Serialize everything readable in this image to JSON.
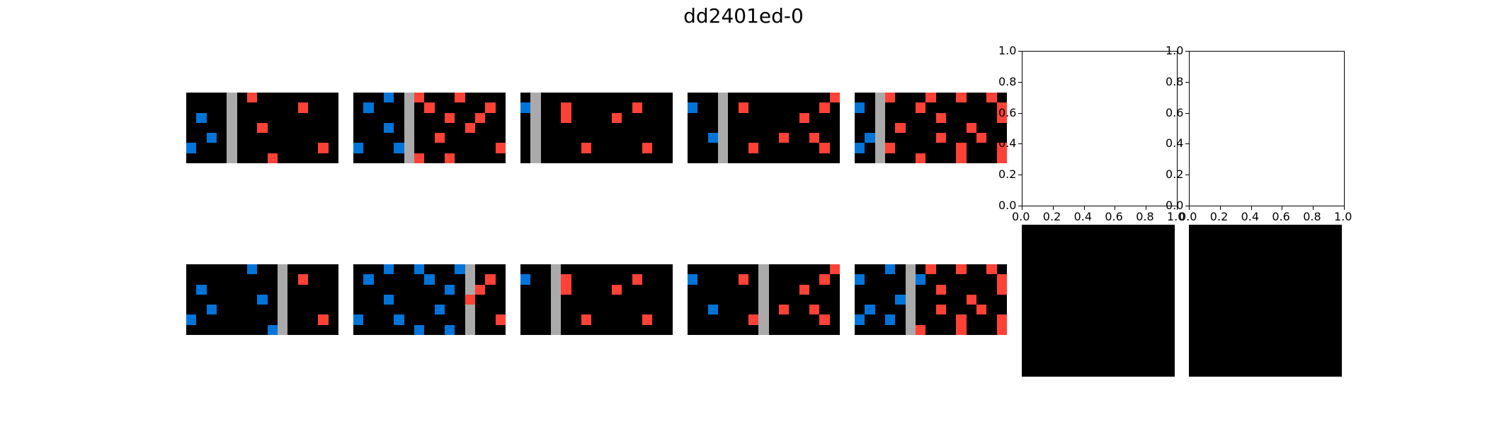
{
  "figure": {
    "title": "dd2401ed-0"
  },
  "colors": {
    "black": "#000000",
    "blue": "#0074D9",
    "red": "#FF4136",
    "gray": "#AAAAAA"
  },
  "grids": [
    {
      "name": "train-1-input",
      "w": 15,
      "h": 7,
      "cells": [
        [
          6,
          0,
          "red"
        ],
        [
          11,
          1,
          "red"
        ],
        [
          1,
          2,
          "blue"
        ],
        [
          7,
          3,
          "red"
        ],
        [
          2,
          4,
          "blue"
        ],
        [
          0,
          5,
          "blue"
        ],
        [
          13,
          5,
          "red"
        ],
        [
          8,
          6,
          "red"
        ]
      ],
      "gray_cols": [
        4
      ]
    },
    {
      "name": "train-2-input",
      "w": 15,
      "h": 7,
      "cells": [
        [
          3,
          0,
          "blue"
        ],
        [
          6,
          0,
          "red"
        ],
        [
          10,
          0,
          "red"
        ],
        [
          1,
          1,
          "blue"
        ],
        [
          7,
          1,
          "red"
        ],
        [
          13,
          1,
          "red"
        ],
        [
          9,
          2,
          "red"
        ],
        [
          12,
          2,
          "red"
        ],
        [
          3,
          3,
          "blue"
        ],
        [
          11,
          3,
          "red"
        ],
        [
          8,
          4,
          "red"
        ],
        [
          0,
          5,
          "blue"
        ],
        [
          4,
          5,
          "blue"
        ],
        [
          14,
          5,
          "red"
        ],
        [
          6,
          6,
          "red"
        ],
        [
          9,
          6,
          "red"
        ]
      ],
      "gray_cols": [
        5
      ]
    },
    {
      "name": "train-3-input",
      "w": 15,
      "h": 7,
      "cells": [
        [
          0,
          1,
          "blue"
        ],
        [
          4,
          1,
          "red"
        ],
        [
          11,
          1,
          "red"
        ],
        [
          4,
          2,
          "red"
        ],
        [
          9,
          2,
          "red"
        ],
        [
          6,
          5,
          "red"
        ],
        [
          12,
          5,
          "red"
        ]
      ],
      "gray_cols": [
        1
      ]
    },
    {
      "name": "train-4-input",
      "w": 15,
      "h": 7,
      "cells": [
        [
          14,
          0,
          "red"
        ],
        [
          0,
          1,
          "blue"
        ],
        [
          5,
          1,
          "red"
        ],
        [
          13,
          1,
          "red"
        ],
        [
          11,
          2,
          "red"
        ],
        [
          2,
          4,
          "blue"
        ],
        [
          9,
          4,
          "red"
        ],
        [
          12,
          4,
          "red"
        ],
        [
          6,
          5,
          "red"
        ],
        [
          13,
          5,
          "red"
        ]
      ],
      "gray_cols": [
        3
      ]
    },
    {
      "name": "train-5-input",
      "w": 15,
      "h": 7,
      "cells": [
        [
          3,
          0,
          "red"
        ],
        [
          7,
          0,
          "red"
        ],
        [
          10,
          0,
          "red"
        ],
        [
          13,
          0,
          "red"
        ],
        [
          0,
          1,
          "blue"
        ],
        [
          6,
          1,
          "red"
        ],
        [
          14,
          1,
          "red"
        ],
        [
          8,
          2,
          "red"
        ],
        [
          14,
          2,
          "red"
        ],
        [
          4,
          3,
          "red"
        ],
        [
          11,
          3,
          "red"
        ],
        [
          1,
          4,
          "blue"
        ],
        [
          8,
          4,
          "red"
        ],
        [
          12,
          4,
          "red"
        ],
        [
          0,
          5,
          "blue"
        ],
        [
          3,
          5,
          "red"
        ],
        [
          10,
          5,
          "red"
        ],
        [
          14,
          5,
          "red"
        ],
        [
          6,
          6,
          "red"
        ],
        [
          10,
          6,
          "red"
        ],
        [
          14,
          6,
          "red"
        ]
      ],
      "gray_cols": [
        2
      ]
    },
    {
      "name": "train-1-output",
      "w": 15,
      "h": 7,
      "cells": [
        [
          6,
          0,
          "blue"
        ],
        [
          11,
          1,
          "red"
        ],
        [
          1,
          2,
          "blue"
        ],
        [
          7,
          3,
          "blue"
        ],
        [
          2,
          4,
          "blue"
        ],
        [
          0,
          5,
          "blue"
        ],
        [
          13,
          5,
          "red"
        ],
        [
          8,
          6,
          "blue"
        ]
      ],
      "gray_cols": [
        9
      ]
    },
    {
      "name": "train-2-output",
      "w": 15,
      "h": 7,
      "cells": [
        [
          3,
          0,
          "blue"
        ],
        [
          6,
          0,
          "blue"
        ],
        [
          10,
          0,
          "blue"
        ],
        [
          1,
          1,
          "blue"
        ],
        [
          7,
          1,
          "blue"
        ],
        [
          13,
          1,
          "red"
        ],
        [
          9,
          2,
          "blue"
        ],
        [
          12,
          2,
          "red"
        ],
        [
          3,
          3,
          "blue"
        ],
        [
          11,
          3,
          "red"
        ],
        [
          8,
          4,
          "blue"
        ],
        [
          0,
          5,
          "blue"
        ],
        [
          4,
          5,
          "blue"
        ],
        [
          14,
          5,
          "red"
        ],
        [
          6,
          6,
          "blue"
        ],
        [
          9,
          6,
          "blue"
        ]
      ],
      "gray_cols": [
        11
      ]
    },
    {
      "name": "train-3-output",
      "w": 15,
      "h": 7,
      "cells": [
        [
          0,
          1,
          "blue"
        ],
        [
          4,
          1,
          "red"
        ],
        [
          11,
          1,
          "red"
        ],
        [
          4,
          2,
          "red"
        ],
        [
          9,
          2,
          "red"
        ],
        [
          6,
          5,
          "red"
        ],
        [
          12,
          5,
          "red"
        ]
      ],
      "gray_cols": [
        3
      ]
    },
    {
      "name": "train-4-output",
      "w": 15,
      "h": 7,
      "cells": [
        [
          14,
          0,
          "red"
        ],
        [
          0,
          1,
          "blue"
        ],
        [
          5,
          1,
          "red"
        ],
        [
          13,
          1,
          "red"
        ],
        [
          11,
          2,
          "red"
        ],
        [
          2,
          4,
          "blue"
        ],
        [
          9,
          4,
          "red"
        ],
        [
          12,
          4,
          "red"
        ],
        [
          6,
          5,
          "red"
        ],
        [
          13,
          5,
          "red"
        ]
      ],
      "gray_cols": [
        7
      ]
    },
    {
      "name": "train-5-output",
      "w": 15,
      "h": 7,
      "cells": [
        [
          3,
          0,
          "blue"
        ],
        [
          7,
          0,
          "red"
        ],
        [
          10,
          0,
          "red"
        ],
        [
          13,
          0,
          "red"
        ],
        [
          0,
          1,
          "blue"
        ],
        [
          6,
          1,
          "blue"
        ],
        [
          14,
          1,
          "red"
        ],
        [
          8,
          2,
          "red"
        ],
        [
          14,
          2,
          "red"
        ],
        [
          4,
          3,
          "blue"
        ],
        [
          11,
          3,
          "red"
        ],
        [
          1,
          4,
          "blue"
        ],
        [
          8,
          4,
          "red"
        ],
        [
          12,
          4,
          "red"
        ],
        [
          0,
          5,
          "blue"
        ],
        [
          3,
          5,
          "blue"
        ],
        [
          10,
          5,
          "red"
        ],
        [
          14,
          5,
          "red"
        ],
        [
          6,
          6,
          "red"
        ],
        [
          10,
          6,
          "red"
        ],
        [
          14,
          6,
          "red"
        ]
      ],
      "gray_cols": [
        5
      ]
    }
  ],
  "empty_axes": [
    {
      "name": "test-input-axes",
      "xticks": [
        "0.0",
        "0.2",
        "0.4",
        "0.6",
        "0.8",
        "1.0"
      ],
      "yticks": [
        "0.0",
        "0.2",
        "0.4",
        "0.6",
        "0.8",
        "1.0"
      ]
    },
    {
      "name": "test-output-axes",
      "xticks": [
        "0.0",
        "0.2",
        "0.4",
        "0.6",
        "0.8",
        "1.0"
      ],
      "yticks": [
        "0.0",
        "0.2",
        "0.4",
        "0.6",
        "0.8",
        "1.0"
      ]
    }
  ],
  "black_panels": [
    {
      "name": "test-input-grid"
    },
    {
      "name": "test-output-grid"
    }
  ]
}
